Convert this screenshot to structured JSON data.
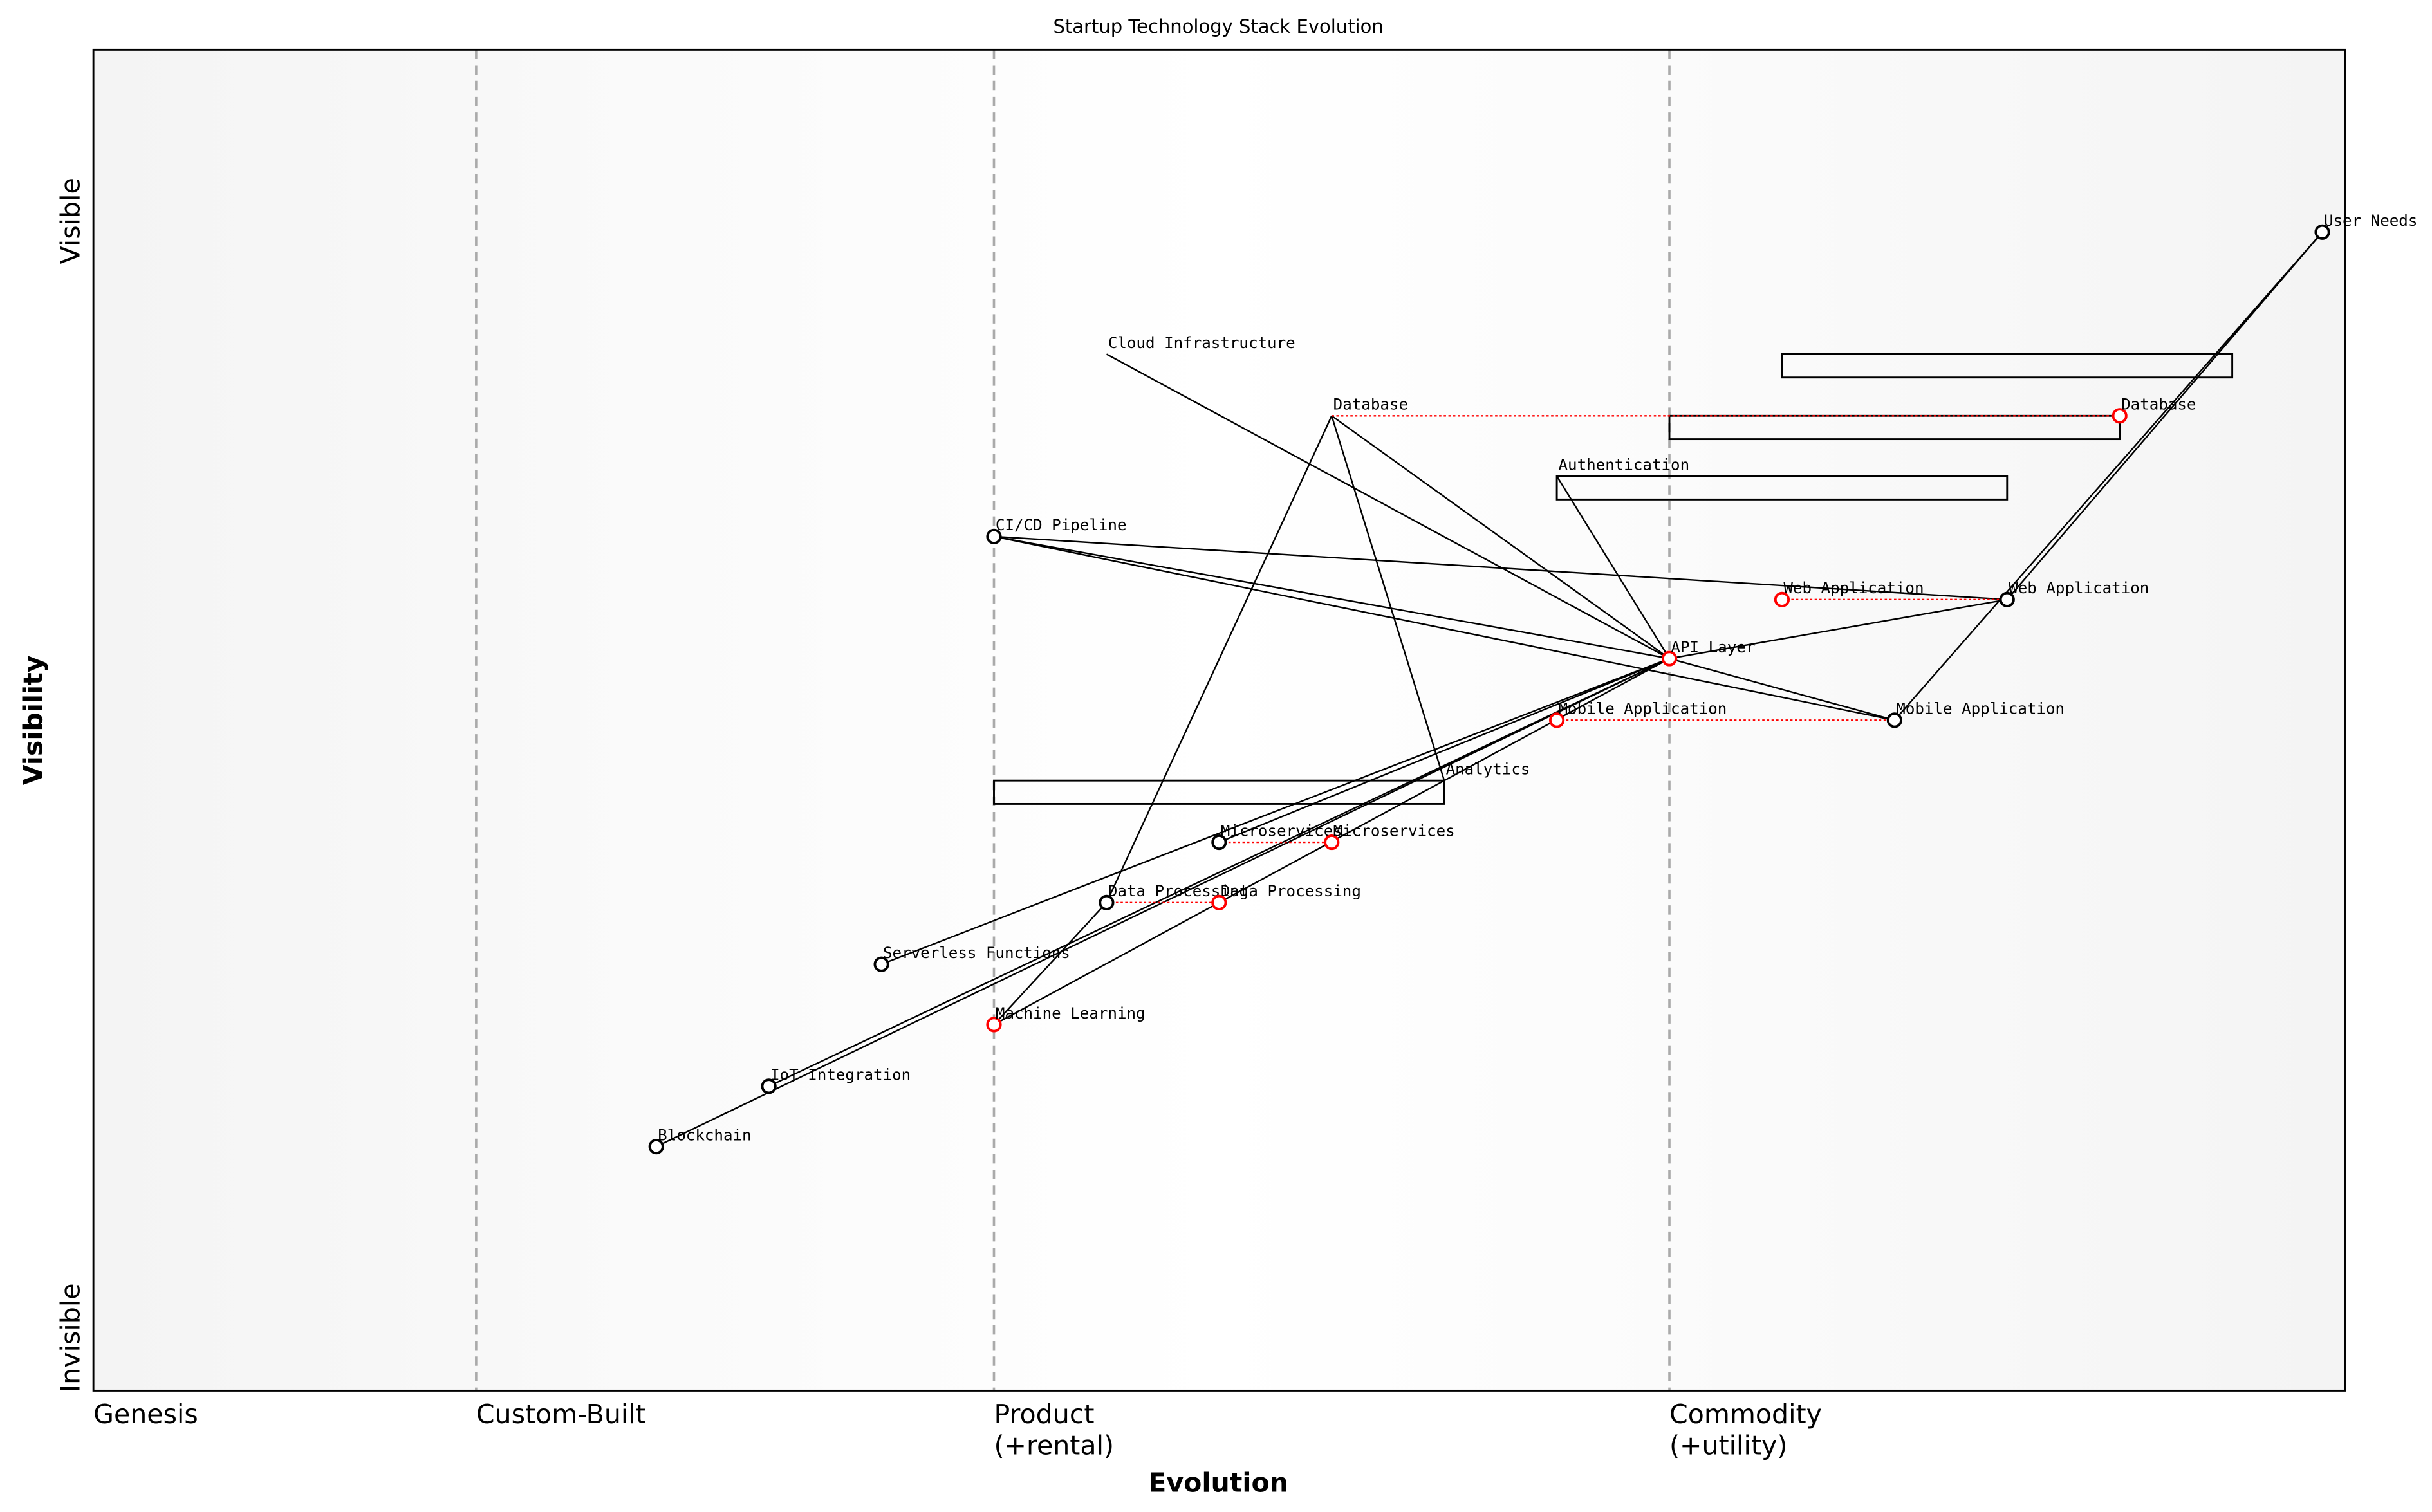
{
  "title": "Startup Technology Stack Evolution",
  "y_axis": {
    "label": "Visibility",
    "top": "Visible",
    "bottom": "Invisible"
  },
  "x_axis": {
    "label": "Evolution",
    "stages": [
      {
        "line1": "Genesis",
        "line2": "",
        "start": 0.0
      },
      {
        "line1": "Custom-Built",
        "line2": "",
        "start": 0.17
      },
      {
        "line1": "Product",
        "line2": "(+rental)",
        "start": 0.4
      },
      {
        "line1": "Commodity",
        "line2": "(+utility)",
        "start": 0.7
      }
    ]
  },
  "colors": {
    "component": "#000000",
    "evolved": "#ff0000",
    "divider": "#aaaaaa",
    "band_edge": "#f4f4f4",
    "band_mid": "#ffffff"
  },
  "chart_data": {
    "type": "scatter",
    "xlabel": "Evolution",
    "ylabel": "Visibility",
    "xlim": [
      0,
      1
    ],
    "ylim": [
      0,
      1
    ],
    "components": [
      {
        "id": "user",
        "name": "User Needs",
        "evo": 0.99,
        "vis": 0.864,
        "marker": "black"
      },
      {
        "id": "web",
        "name": "Web Application",
        "evo": 0.85,
        "vis": 0.59,
        "marker": "black"
      },
      {
        "id": "web_ev",
        "name": "Web Application",
        "evo": 0.75,
        "vis": 0.59,
        "marker": "red"
      },
      {
        "id": "mob",
        "name": "Mobile Application",
        "evo": 0.8,
        "vis": 0.5,
        "marker": "black"
      },
      {
        "id": "mob_ev",
        "name": "Mobile Application",
        "evo": 0.65,
        "vis": 0.5,
        "marker": "red"
      },
      {
        "id": "api",
        "name": "API Layer",
        "evo": 0.7,
        "vis": 0.546,
        "marker": "red"
      },
      {
        "id": "db_ev",
        "name": "Database",
        "evo": 0.9,
        "vis": 0.727,
        "marker": "red"
      },
      {
        "id": "db",
        "name": "Database",
        "evo": 0.55,
        "vis": 0.727,
        "marker": "none"
      },
      {
        "id": "auth",
        "name": "Authentication",
        "evo": 0.65,
        "vis": 0.682,
        "marker": "none"
      },
      {
        "id": "cloud",
        "name": "Cloud Infrastructure",
        "evo": 0.45,
        "vis": 0.773,
        "marker": "none"
      },
      {
        "id": "cicd",
        "name": "CI/CD Pipeline",
        "evo": 0.4,
        "vis": 0.637,
        "marker": "black"
      },
      {
        "id": "analytics",
        "name": "Analytics",
        "evo": 0.6,
        "vis": 0.455,
        "marker": "none"
      },
      {
        "id": "micro",
        "name": "Microservices",
        "evo": 0.5,
        "vis": 0.409,
        "marker": "black"
      },
      {
        "id": "micro_ev",
        "name": "Microservices",
        "evo": 0.55,
        "vis": 0.409,
        "marker": "red"
      },
      {
        "id": "dp",
        "name": "Data Processing",
        "evo": 0.45,
        "vis": 0.364,
        "marker": "black"
      },
      {
        "id": "dp_ev",
        "name": "Data Processing",
        "evo": 0.5,
        "vis": 0.364,
        "marker": "red"
      },
      {
        "id": "serverless",
        "name": "Serverless Functions",
        "evo": 0.35,
        "vis": 0.318,
        "marker": "black"
      },
      {
        "id": "ml",
        "name": "Machine Learning",
        "evo": 0.4,
        "vis": 0.273,
        "marker": "red"
      },
      {
        "id": "iot",
        "name": "IoT Integration",
        "evo": 0.3,
        "vis": 0.227,
        "marker": "black"
      },
      {
        "id": "chain",
        "name": "Blockchain",
        "evo": 0.25,
        "vis": 0.182,
        "marker": "black"
      }
    ],
    "links": [
      [
        "user",
        "web"
      ],
      [
        "user",
        "mob"
      ],
      [
        "web",
        "api"
      ],
      [
        "web",
        "cicd"
      ],
      [
        "mob",
        "api"
      ],
      [
        "mob",
        "cicd"
      ],
      [
        "cicd",
        "api"
      ],
      [
        "api",
        "cloud"
      ],
      [
        "api",
        "db"
      ],
      [
        "api",
        "auth"
      ],
      [
        "api",
        "micro"
      ],
      [
        "api",
        "serverless"
      ],
      [
        "api",
        "iot"
      ],
      [
        "api",
        "chain"
      ],
      [
        "api",
        "ml"
      ],
      [
        "db",
        "dp"
      ],
      [
        "db",
        "analytics"
      ],
      [
        "dp",
        "ml"
      ]
    ],
    "evolutions": [
      [
        "db",
        "db_ev"
      ],
      [
        "web_ev",
        "web"
      ],
      [
        "mob_ev",
        "mob"
      ],
      [
        "micro",
        "micro_ev"
      ],
      [
        "dp",
        "dp_ev"
      ]
    ],
    "pipelines": [
      {
        "vis": 0.773,
        "evo_start": 0.75,
        "evo_end": 0.95
      },
      {
        "vis": 0.727,
        "evo_start": 0.7,
        "evo_end": 0.9
      },
      {
        "vis": 0.682,
        "evo_start": 0.65,
        "evo_end": 0.85
      },
      {
        "vis": 0.455,
        "evo_start": 0.4,
        "evo_end": 0.6
      }
    ]
  }
}
